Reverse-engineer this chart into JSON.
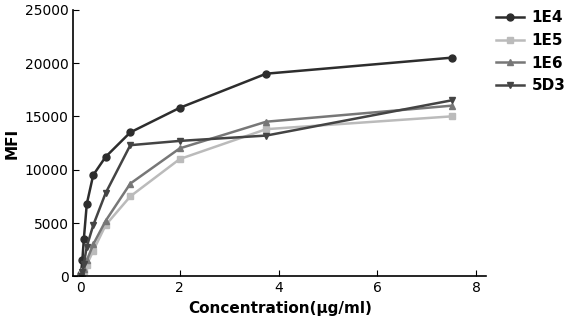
{
  "series": [
    {
      "label": "1E4",
      "color": "#2d2d2d",
      "marker": "o",
      "markersize": 5,
      "linewidth": 1.8,
      "x": [
        0.0,
        0.03,
        0.06,
        0.12,
        0.25,
        0.5,
        1.0,
        2.0,
        3.75,
        7.5
      ],
      "y": [
        200,
        1500,
        3500,
        6800,
        9500,
        11200,
        13500,
        15800,
        19000,
        20500
      ]
    },
    {
      "label": "1E5",
      "color": "#bbbbbb",
      "marker": "s",
      "markersize": 5,
      "linewidth": 1.8,
      "x": [
        0.0,
        0.03,
        0.06,
        0.12,
        0.25,
        0.5,
        1.0,
        2.0,
        3.75,
        7.5
      ],
      "y": [
        50,
        200,
        500,
        1100,
        2400,
        4800,
        7500,
        11000,
        13800,
        15000
      ]
    },
    {
      "label": "1E6",
      "color": "#777777",
      "marker": "^",
      "markersize": 5,
      "linewidth": 1.8,
      "x": [
        0.0,
        0.03,
        0.06,
        0.12,
        0.25,
        0.5,
        1.0,
        2.0,
        3.75,
        7.5
      ],
      "y": [
        50,
        200,
        700,
        1500,
        3000,
        5200,
        8700,
        12000,
        14500,
        16000
      ]
    },
    {
      "label": "5D3",
      "color": "#444444",
      "marker": "v",
      "markersize": 5,
      "linewidth": 1.8,
      "x": [
        0.0,
        0.03,
        0.06,
        0.12,
        0.25,
        0.5,
        1.0,
        2.0,
        3.75,
        7.5
      ],
      "y": [
        50,
        400,
        1200,
        2800,
        4800,
        7800,
        12300,
        12700,
        13200,
        16500
      ]
    }
  ],
  "xlabel": "Concentration(μg/ml)",
  "ylabel": "MFI",
  "xlim": [
    -0.15,
    8.2
  ],
  "ylim": [
    0,
    25000
  ],
  "yticks": [
    0,
    5000,
    10000,
    15000,
    20000,
    25000
  ],
  "xticks": [
    0,
    2,
    4,
    6,
    8
  ],
  "background_color": "#ffffff",
  "label_fontsize": 11,
  "tick_fontsize": 10,
  "legend_fontsize": 11
}
